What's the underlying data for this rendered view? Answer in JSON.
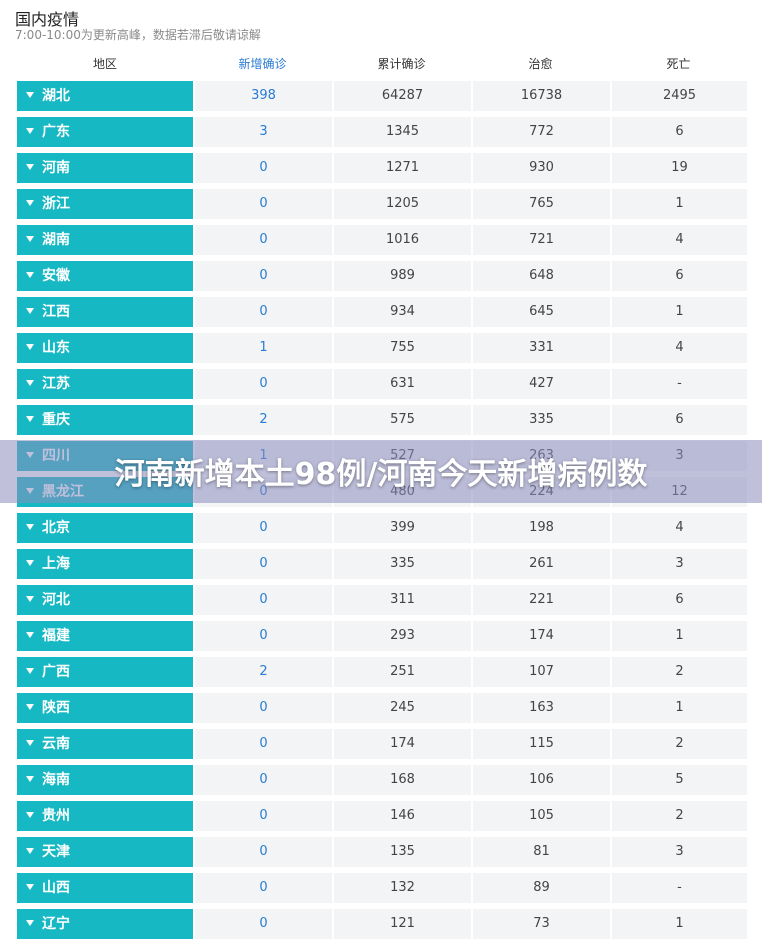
{
  "title": "国内疫情",
  "subtitle": "7:00-10:00为更新高峰，数据若滞后敬请谅解",
  "headers": {
    "region": "地区",
    "new_confirmed": "新增确诊",
    "cumulative": "累计确诊",
    "cured": "治愈",
    "deaths": "死亡"
  },
  "colors": {
    "region_bg": "#16b8c3",
    "accent_blue": "#2a7bd3",
    "cell_bg": "#f2f4f6",
    "overlay": "#8c8cbe"
  },
  "rows": [
    {
      "region": "湖北",
      "new": "398",
      "cumulative": "64287",
      "cured": "16738",
      "deaths": "2495"
    },
    {
      "region": "广东",
      "new": "3",
      "cumulative": "1345",
      "cured": "772",
      "deaths": "6"
    },
    {
      "region": "河南",
      "new": "0",
      "cumulative": "1271",
      "cured": "930",
      "deaths": "19"
    },
    {
      "region": "浙江",
      "new": "0",
      "cumulative": "1205",
      "cured": "765",
      "deaths": "1"
    },
    {
      "region": "湖南",
      "new": "0",
      "cumulative": "1016",
      "cured": "721",
      "deaths": "4"
    },
    {
      "region": "安徽",
      "new": "0",
      "cumulative": "989",
      "cured": "648",
      "deaths": "6"
    },
    {
      "region": "江西",
      "new": "0",
      "cumulative": "934",
      "cured": "645",
      "deaths": "1"
    },
    {
      "region": "山东",
      "new": "1",
      "cumulative": "755",
      "cured": "331",
      "deaths": "4"
    },
    {
      "region": "江苏",
      "new": "0",
      "cumulative": "631",
      "cured": "427",
      "deaths": "-"
    },
    {
      "region": "重庆",
      "new": "2",
      "cumulative": "575",
      "cured": "335",
      "deaths": "6"
    },
    {
      "region": "四川",
      "new": "1",
      "cumulative": "527",
      "cured": "263",
      "deaths": "3"
    },
    {
      "region": "黑龙江",
      "new": "0",
      "cumulative": "480",
      "cured": "224",
      "deaths": "12"
    },
    {
      "region": "北京",
      "new": "0",
      "cumulative": "399",
      "cured": "198",
      "deaths": "4"
    },
    {
      "region": "上海",
      "new": "0",
      "cumulative": "335",
      "cured": "261",
      "deaths": "3"
    },
    {
      "region": "河北",
      "new": "0",
      "cumulative": "311",
      "cured": "221",
      "deaths": "6"
    },
    {
      "region": "福建",
      "new": "0",
      "cumulative": "293",
      "cured": "174",
      "deaths": "1"
    },
    {
      "region": "广西",
      "new": "2",
      "cumulative": "251",
      "cured": "107",
      "deaths": "2"
    },
    {
      "region": "陕西",
      "new": "0",
      "cumulative": "245",
      "cured": "163",
      "deaths": "1"
    },
    {
      "region": "云南",
      "new": "0",
      "cumulative": "174",
      "cured": "115",
      "deaths": "2"
    },
    {
      "region": "海南",
      "new": "0",
      "cumulative": "168",
      "cured": "106",
      "deaths": "5"
    },
    {
      "region": "贵州",
      "new": "0",
      "cumulative": "146",
      "cured": "105",
      "deaths": "2"
    },
    {
      "region": "天津",
      "new": "0",
      "cumulative": "135",
      "cured": "81",
      "deaths": "3"
    },
    {
      "region": "山西",
      "new": "0",
      "cumulative": "132",
      "cured": "89",
      "deaths": "-"
    },
    {
      "region": "辽宁",
      "new": "0",
      "cumulative": "121",
      "cured": "73",
      "deaths": "1"
    }
  ],
  "overlay_title": "河南新增本土98例/河南今天新增病例数",
  "icons": {
    "row_toggle": "caret-down-icon"
  }
}
